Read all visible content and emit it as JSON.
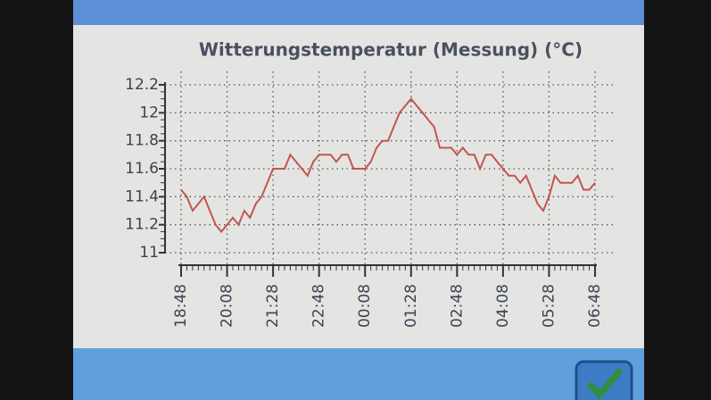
{
  "chart_data": {
    "type": "line",
    "title": "Witterungstemperatur (Messung) (°C)",
    "categories": [
      "18:48",
      null,
      null,
      null,
      null,
      null,
      null,
      null,
      "20:08",
      null,
      null,
      null,
      null,
      null,
      null,
      null,
      "21:28",
      null,
      null,
      null,
      null,
      null,
      null,
      null,
      "22:48",
      null,
      null,
      null,
      null,
      null,
      null,
      null,
      "00:08",
      null,
      null,
      null,
      null,
      null,
      null,
      null,
      "01:28",
      null,
      null,
      null,
      null,
      null,
      null,
      null,
      "02:48",
      null,
      null,
      null,
      null,
      null,
      null,
      null,
      "04:08",
      null,
      null,
      null,
      null,
      null,
      null,
      null,
      "05:28",
      null,
      null,
      null,
      null,
      null,
      null,
      null,
      "06:48"
    ],
    "values": [
      11.45,
      11.4,
      11.3,
      11.35,
      11.4,
      11.3,
      11.2,
      11.15,
      11.2,
      11.25,
      11.2,
      11.3,
      11.25,
      11.35,
      11.4,
      11.5,
      11.6,
      11.6,
      11.6,
      11.7,
      11.65,
      11.6,
      11.55,
      11.65,
      11.7,
      11.7,
      11.7,
      11.65,
      11.7,
      11.7,
      11.6,
      11.6,
      11.6,
      11.65,
      11.75,
      11.8,
      11.8,
      11.9,
      12.0,
      12.05,
      12.1,
      12.05,
      12.0,
      11.95,
      11.9,
      11.75,
      11.75,
      11.75,
      11.7,
      11.75,
      11.7,
      11.7,
      11.6,
      11.7,
      11.7,
      11.65,
      11.6,
      11.55,
      11.55,
      11.5,
      11.55,
      11.45,
      11.35,
      11.3,
      11.4,
      11.55,
      11.5,
      11.5,
      11.5,
      11.55,
      11.45,
      11.45,
      11.5
    ],
    "color": "#c4544f",
    "ylim": [
      11,
      12.2
    ],
    "yticks": [
      11,
      11.2,
      11.4,
      11.6,
      11.8,
      12,
      12.2
    ],
    "grid": true
  }
}
